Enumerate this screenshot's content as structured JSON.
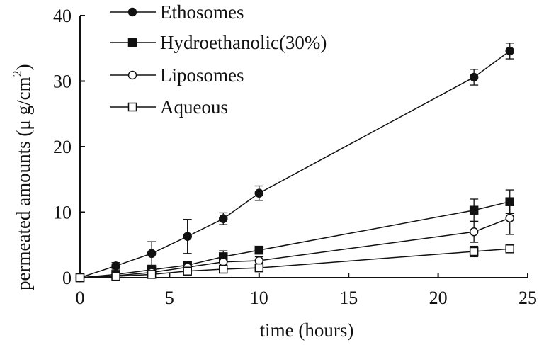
{
  "chart_data": {
    "type": "line",
    "xlabel": "time (hours)",
    "ylabel_main": "permeated amounts (",
    "ylabel_mu": "μ",
    "ylabel_unit": " g/cm",
    "ylabel_sup": "2",
    "ylabel_close": ")",
    "xlim": [
      0,
      25
    ],
    "ylim": [
      0,
      40
    ],
    "xticks": [
      "0",
      "5",
      "10",
      "15",
      "20",
      "25"
    ],
    "yticks": [
      "0",
      "10",
      "20",
      "30",
      "40"
    ],
    "grid": false,
    "legend_position": "top-left",
    "series": [
      {
        "name": "Ethosomes",
        "marker": "filled-circle",
        "x": [
          0,
          2,
          4,
          6,
          8,
          10,
          22,
          24
        ],
        "y": [
          0,
          1.8,
          3.7,
          6.3,
          9.0,
          12.9,
          30.6,
          34.6
        ],
        "err": [
          0,
          0.5,
          1.8,
          2.6,
          0.9,
          1.1,
          1.2,
          1.2
        ]
      },
      {
        "name": "Hydroethanolic(30%)",
        "marker": "filled-square",
        "x": [
          0,
          2,
          4,
          6,
          8,
          10,
          22,
          24
        ],
        "y": [
          0,
          0.5,
          1.2,
          1.9,
          3.2,
          4.2,
          10.3,
          11.6
        ],
        "err": [
          0,
          0.3,
          0.6,
          0.4,
          0.9,
          0.5,
          1.7,
          1.8
        ]
      },
      {
        "name": "Liposomes",
        "marker": "open-circle",
        "x": [
          0,
          2,
          4,
          6,
          8,
          10,
          22,
          24
        ],
        "y": [
          0,
          0.3,
          0.8,
          1.6,
          2.4,
          2.6,
          7.0,
          9.1
        ],
        "err": [
          0,
          0.2,
          0.5,
          0.5,
          0.8,
          0.6,
          1.6,
          2.5
        ]
      },
      {
        "name": "Aqueous",
        "marker": "open-square",
        "x": [
          0,
          2,
          4,
          6,
          8,
          10,
          22,
          24
        ],
        "y": [
          0,
          0.2,
          0.5,
          1.0,
          1.3,
          1.5,
          4.0,
          4.4
        ],
        "err": [
          0,
          0.2,
          0.3,
          0.4,
          0.5,
          0.5,
          0.8,
          0.6
        ]
      }
    ]
  }
}
